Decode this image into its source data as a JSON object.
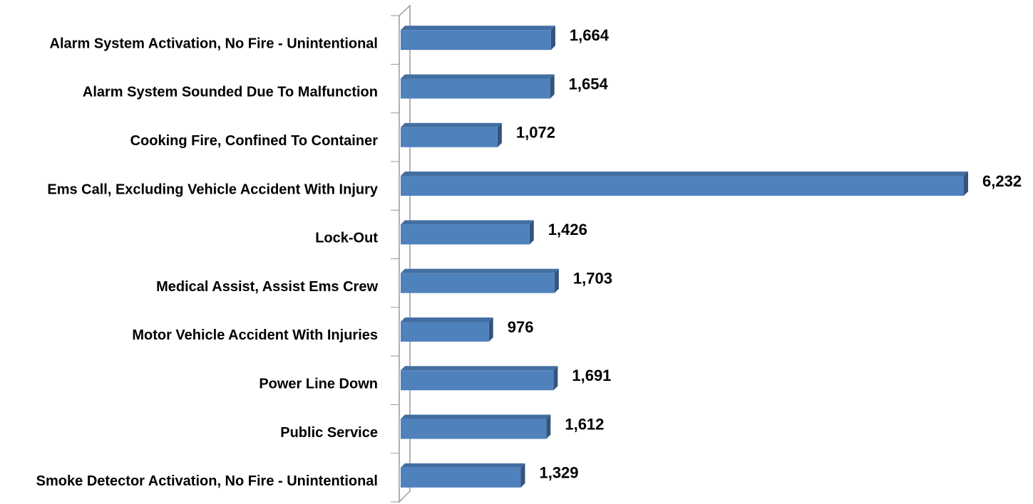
{
  "chart_data": {
    "type": "bar",
    "orientation": "horizontal",
    "categories": [
      "Alarm System Activation, No Fire - Unintentional",
      "Alarm System Sounded Due To Malfunction",
      "Cooking Fire, Confined To Container",
      "Ems Call, Excluding Vehicle Accident With Injury",
      "Lock-Out",
      "Medical Assist, Assist Ems Crew",
      "Motor Vehicle Accident With Injuries",
      "Power Line Down",
      "Public Service",
      "Smoke Detector Activation, No Fire - Unintentional"
    ],
    "values": [
      1664,
      1654,
      1072,
      6232,
      1426,
      1703,
      976,
      1691,
      1612,
      1329
    ],
    "value_labels": [
      "1,664",
      "1,654",
      "1,072",
      "6,232",
      "1,426",
      "1,703",
      "976",
      "1,691",
      "1,612",
      "1,329"
    ],
    "color": "#4f81bd"
  }
}
